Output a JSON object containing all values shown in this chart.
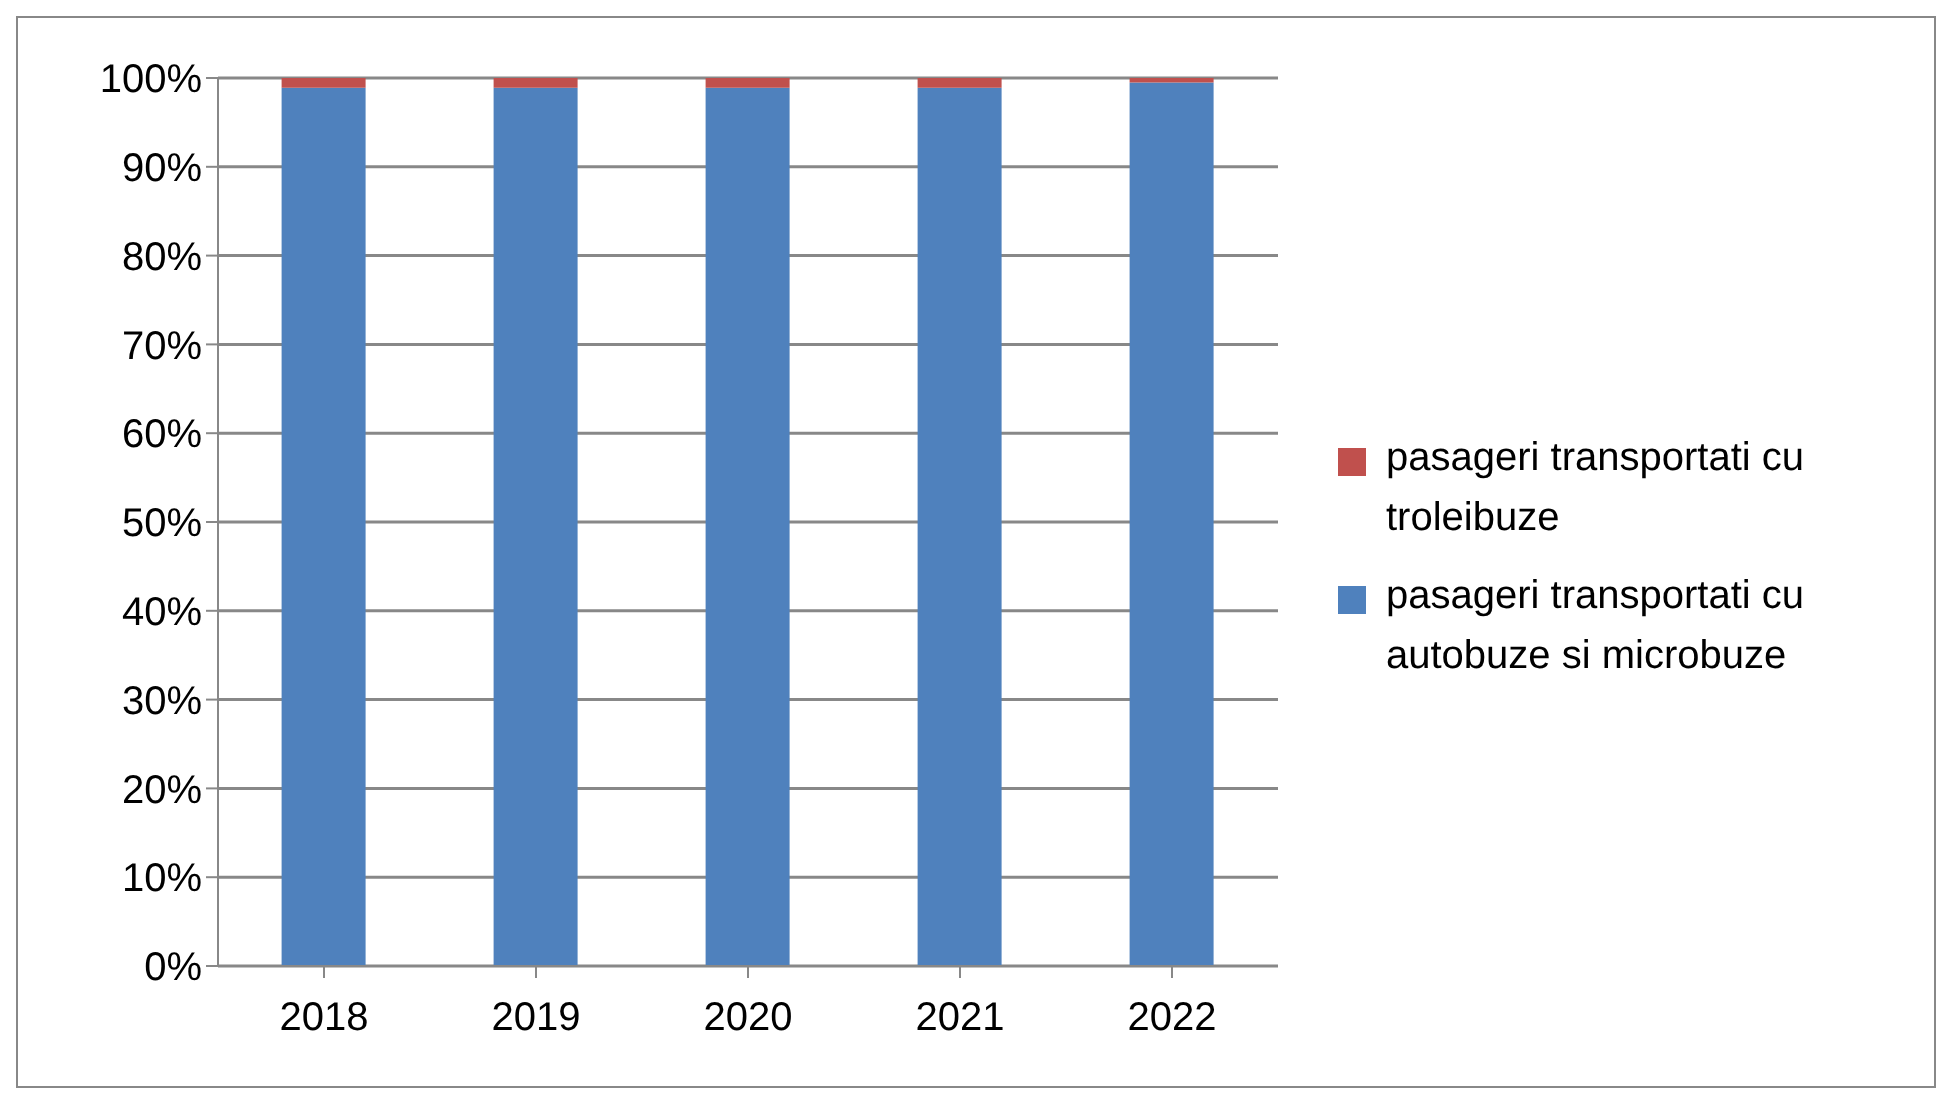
{
  "chart_data": {
    "type": "bar",
    "stacked": true,
    "categories": [
      "2018",
      "2019",
      "2020",
      "2021",
      "2022"
    ],
    "series": [
      {
        "name": "pasageri transportati cu autobuze si microbuze",
        "color": "#4f81bd",
        "values": [
          98.9,
          98.9,
          98.9,
          98.9,
          99.5
        ]
      },
      {
        "name": "pasageri transportati cu troleibuze",
        "color": "#c0504d",
        "values": [
          1.1,
          1.1,
          1.1,
          1.1,
          0.5
        ]
      }
    ],
    "ylim": [
      0,
      100
    ],
    "yticks": [
      {
        "value": 0,
        "label": "0%"
      },
      {
        "value": 10,
        "label": "10%"
      },
      {
        "value": 20,
        "label": "20%"
      },
      {
        "value": 30,
        "label": "30%"
      },
      {
        "value": 40,
        "label": "40%"
      },
      {
        "value": 50,
        "label": "50%"
      },
      {
        "value": 60,
        "label": "60%"
      },
      {
        "value": 70,
        "label": "70%"
      },
      {
        "value": 80,
        "label": "80%"
      },
      {
        "value": 90,
        "label": "90%"
      },
      {
        "value": 100,
        "label": "100%"
      }
    ],
    "grid": "y",
    "legend": "right"
  }
}
